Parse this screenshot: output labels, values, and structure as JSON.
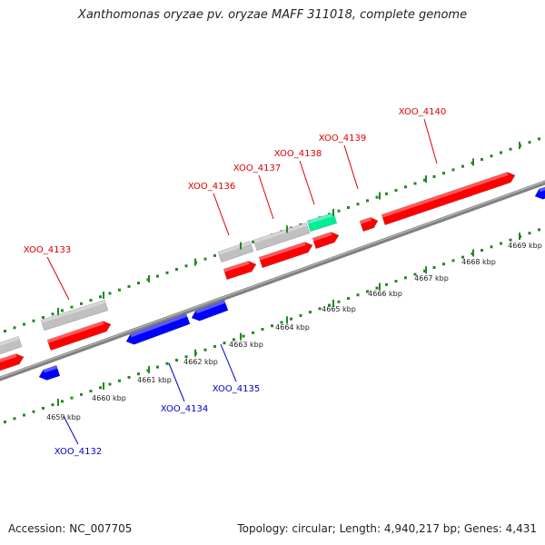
{
  "title": "Xanthomonas oryzae pv. oryzae MAFF 311018, complete genome",
  "footer": {
    "accession": "Accession: NC_007705",
    "summary": "Topology: circular; Length: 4,940,217 bp; Genes: 4,431"
  },
  "scale": {
    "unit": "kbp",
    "ticks": [
      "4659 kbp",
      "4660 kbp",
      "4661 kbp",
      "4662 kbp",
      "4663 kbp",
      "4664 kbp",
      "4665 kbp",
      "4666 kbp",
      "4667 kbp",
      "4668 kbp",
      "4669 kbp"
    ]
  },
  "colors": {
    "forward_label": "#dd0000",
    "reverse_label": "#0000cc",
    "forward_gene": "#ff0000",
    "reverse_gene": "#0000ff",
    "pseudo_gene": "#c0c0c0",
    "rna_gene": "#00ee99",
    "backbone": "#808080",
    "tick": "#228822"
  },
  "forward_labels": [
    "XOO_4133",
    "XOO_4136",
    "XOO_4137",
    "XOO_4138",
    "XOO_4139",
    "XOO_4140"
  ],
  "reverse_labels": [
    "XOO_4132",
    "XOO_4134",
    "XOO_4135"
  ]
}
